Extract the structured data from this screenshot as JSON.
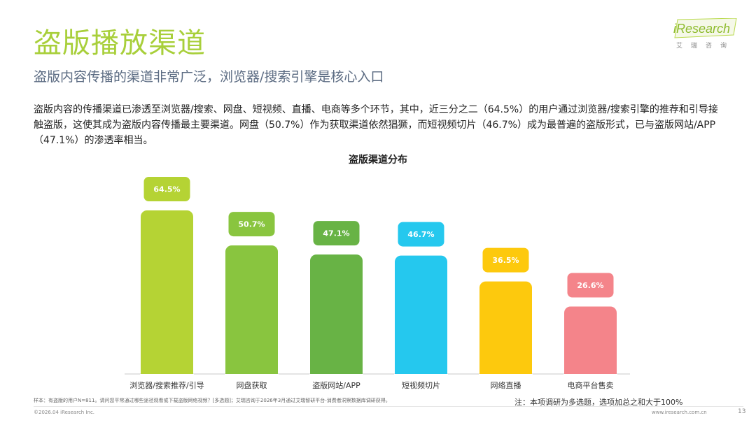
{
  "header": {
    "title": "盗版播放渠道",
    "subtitle": "盗版内容传播的渠道非常广泛，浏览器/搜索引擎是核心入口",
    "body": "盗版内容的传播渠道已渗透至浏览器/搜索、网盘、短视频、直播、电商等多个环节，其中，近三分之二（64.5%）的用户通过浏览器/搜索引擎的推荐和引导接触盗版，这使其成为盗版内容传播最主要渠道。网盘（50.7%）作为获取渠道依然猖獗，而短视频切片（46.7%）成为最普遍的盗版形式，已与盗版网站/APP（47.1%）的渗透率相当。"
  },
  "logo": {
    "brand": "iResearch",
    "tagline": "艾瑞咨询"
  },
  "chart_data": {
    "type": "bar",
    "title": "盗版渠道分布",
    "categories": [
      "浏览器/搜索推荐/引导",
      "网盘获取",
      "盗版网站/APP",
      "短视频切片",
      "网络直播",
      "电商平台售卖"
    ],
    "values": [
      64.5,
      50.7,
      47.1,
      46.7,
      36.5,
      26.6
    ],
    "value_labels": [
      "64.5%",
      "50.7%",
      "47.1%",
      "46.7%",
      "36.5%",
      "26.6%"
    ],
    "unit": "%",
    "ylim": [
      0,
      70
    ],
    "colors": [
      "#b5d334",
      "#89c53f",
      "#68b345",
      "#25c8ee",
      "#fdc90d",
      "#f4848a"
    ],
    "grid": false,
    "legend": "none"
  },
  "footer": {
    "sample": "样本：有盗版的用户N=811。请问您平常通过哪些途径观看或下载盗版网络视频？[多选题]；艾瑞咨询于2026年3月通过艾瑞智研平台-消费者洞察数据库调研获得。",
    "note": "注：本项调研为多选题，选项加总之和大于100%",
    "copyright": "©2026.04 iResearch Inc.",
    "website": "www.iresearch.com.cn",
    "page": "13"
  }
}
